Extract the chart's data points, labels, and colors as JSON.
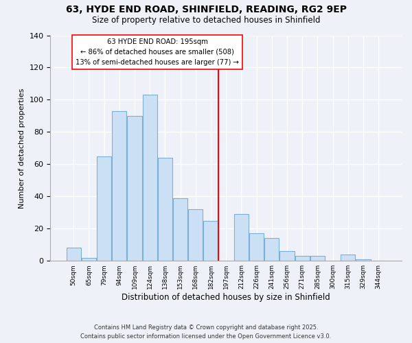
{
  "title": "63, HYDE END ROAD, SHINFIELD, READING, RG2 9EP",
  "subtitle": "Size of property relative to detached houses in Shinfield",
  "xlabel": "Distribution of detached houses by size in Shinfield",
  "ylabel": "Number of detached properties",
  "bin_labels": [
    "50sqm",
    "65sqm",
    "79sqm",
    "94sqm",
    "109sqm",
    "124sqm",
    "138sqm",
    "153sqm",
    "168sqm",
    "182sqm",
    "197sqm",
    "212sqm",
    "226sqm",
    "241sqm",
    "256sqm",
    "271sqm",
    "285sqm",
    "300sqm",
    "315sqm",
    "329sqm",
    "344sqm"
  ],
  "bar_heights": [
    8,
    2,
    65,
    93,
    90,
    103,
    64,
    39,
    32,
    25,
    0,
    29,
    17,
    14,
    6,
    3,
    3,
    0,
    4,
    1,
    0
  ],
  "bar_color": "#cce0f5",
  "bar_edge_color": "#7ab0d4",
  "vline_color": "red",
  "annotation_title": "63 HYDE END ROAD: 195sqm",
  "annotation_line1": "← 86% of detached houses are smaller (508)",
  "annotation_line2": "13% of semi-detached houses are larger (77) →",
  "ylim": [
    0,
    140
  ],
  "yticks": [
    0,
    20,
    40,
    60,
    80,
    100,
    120,
    140
  ],
  "footer1": "Contains HM Land Registry data © Crown copyright and database right 2025.",
  "footer2": "Contains public sector information licensed under the Open Government Licence v3.0.",
  "background_color": "#eef2f8"
}
